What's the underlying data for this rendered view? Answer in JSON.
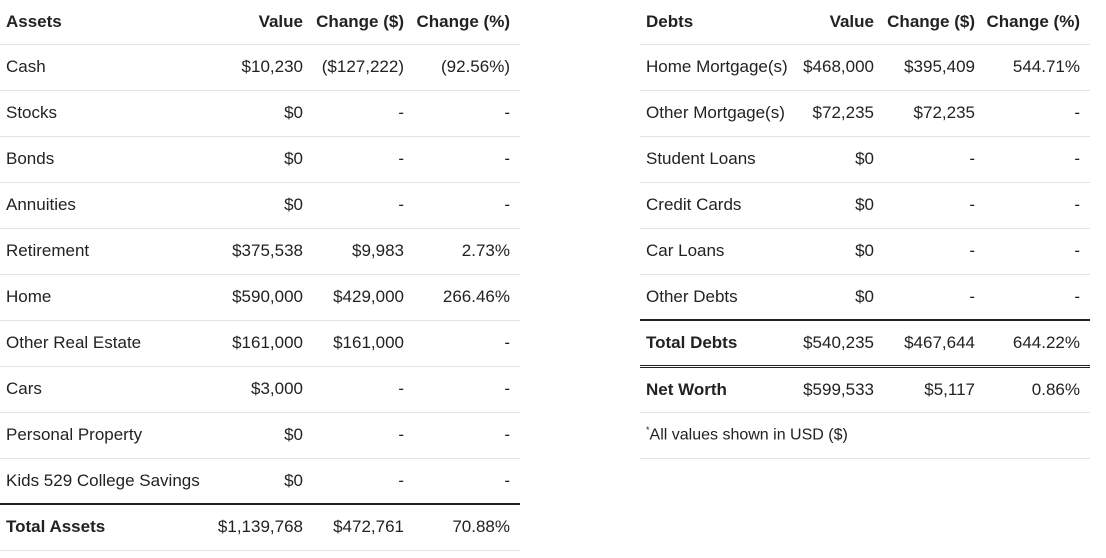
{
  "assets": {
    "headers": {
      "name": "Assets",
      "value": "Value",
      "change": "Change ($)",
      "pct": "Change (%)"
    },
    "rows": [
      {
        "name": "Cash",
        "value": "$10,230",
        "change": "($127,222)",
        "pct": "(92.56%)"
      },
      {
        "name": "Stocks",
        "value": "$0",
        "change": "-",
        "pct": "-"
      },
      {
        "name": "Bonds",
        "value": "$0",
        "change": "-",
        "pct": "-"
      },
      {
        "name": "Annuities",
        "value": "$0",
        "change": "-",
        "pct": "-"
      },
      {
        "name": "Retirement",
        "value": "$375,538",
        "change": "$9,983",
        "pct": "2.73%"
      },
      {
        "name": "Home",
        "value": "$590,000",
        "change": "$429,000",
        "pct": "266.46%"
      },
      {
        "name": "Other Real Estate",
        "value": "$161,000",
        "change": "$161,000",
        "pct": "-"
      },
      {
        "name": "Cars",
        "value": "$3,000",
        "change": "-",
        "pct": "-"
      },
      {
        "name": "Personal Property",
        "value": "$0",
        "change": "-",
        "pct": "-"
      },
      {
        "name": "Kids 529 College Savings",
        "value": "$0",
        "change": "-",
        "pct": "-"
      }
    ],
    "total": {
      "name": "Total Assets",
      "value": "$1,139,768",
      "change": "$472,761",
      "pct": "70.88%"
    }
  },
  "debts": {
    "headers": {
      "name": "Debts",
      "value": "Value",
      "change": "Change ($)",
      "pct": "Change (%)"
    },
    "rows": [
      {
        "name": "Home Mortgage(s)",
        "value": "$468,000",
        "change": "$395,409",
        "pct": "544.71%"
      },
      {
        "name": "Other Mortgage(s)",
        "value": "$72,235",
        "change": "$72,235",
        "pct": "-"
      },
      {
        "name": "Student Loans",
        "value": "$0",
        "change": "-",
        "pct": "-"
      },
      {
        "name": "Credit Cards",
        "value": "$0",
        "change": "-",
        "pct": "-"
      },
      {
        "name": "Car Loans",
        "value": "$0",
        "change": "-",
        "pct": "-"
      },
      {
        "name": "Other Debts",
        "value": "$0",
        "change": "-",
        "pct": "-"
      }
    ],
    "total": {
      "name": "Total Debts",
      "value": "$540,235",
      "change": "$467,644",
      "pct": "644.22%"
    },
    "networth": {
      "name": "Net Worth",
      "value": "$599,533",
      "change": "$5,117",
      "pct": "0.86%"
    },
    "footnote": {
      "mark": "*",
      "text": "All values shown in USD ($)"
    }
  }
}
